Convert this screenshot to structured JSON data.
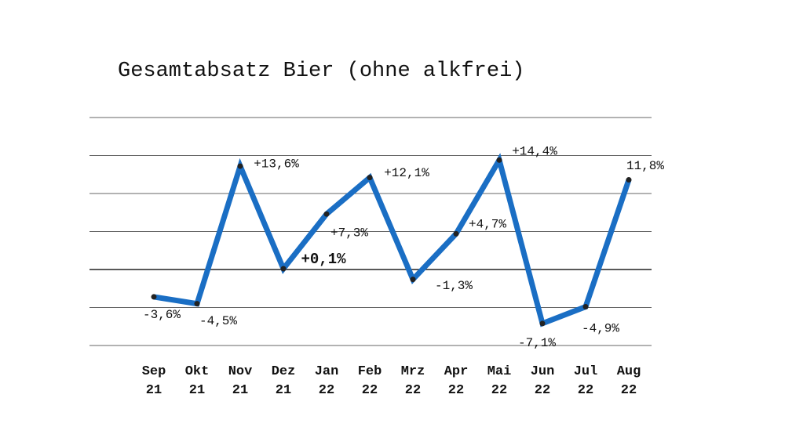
{
  "chart_data": {
    "type": "line",
    "title": "Gesamtabsatz Bier (ohne alkfrei)",
    "categories": [
      "Sep 21",
      "Okt 21",
      "Nov 21",
      "Dez 21",
      "Jan 22",
      "Feb 22",
      "Mrz 22",
      "Apr 22",
      "Mai 22",
      "Jun 22",
      "Jul 22",
      "Aug 22"
    ],
    "values": [
      -3.6,
      -4.5,
      13.6,
      0.1,
      7.3,
      12.1,
      -1.3,
      4.7,
      14.4,
      -7.1,
      -4.9,
      11.8
    ],
    "value_labels": [
      "-3,6%",
      "-4,5%",
      "+13,6%",
      "+0,1%",
      "+7,3%",
      "+12,1%",
      "-1,3%",
      "+4,7%",
      "+14,4%",
      "-7,1%",
      "-4,9%",
      "11,8%"
    ],
    "color": "#1a6ec4",
    "ylim": [
      -10,
      20
    ],
    "yticks": [
      -10,
      -5,
      0,
      5,
      10,
      15,
      20
    ],
    "grid": true
  }
}
